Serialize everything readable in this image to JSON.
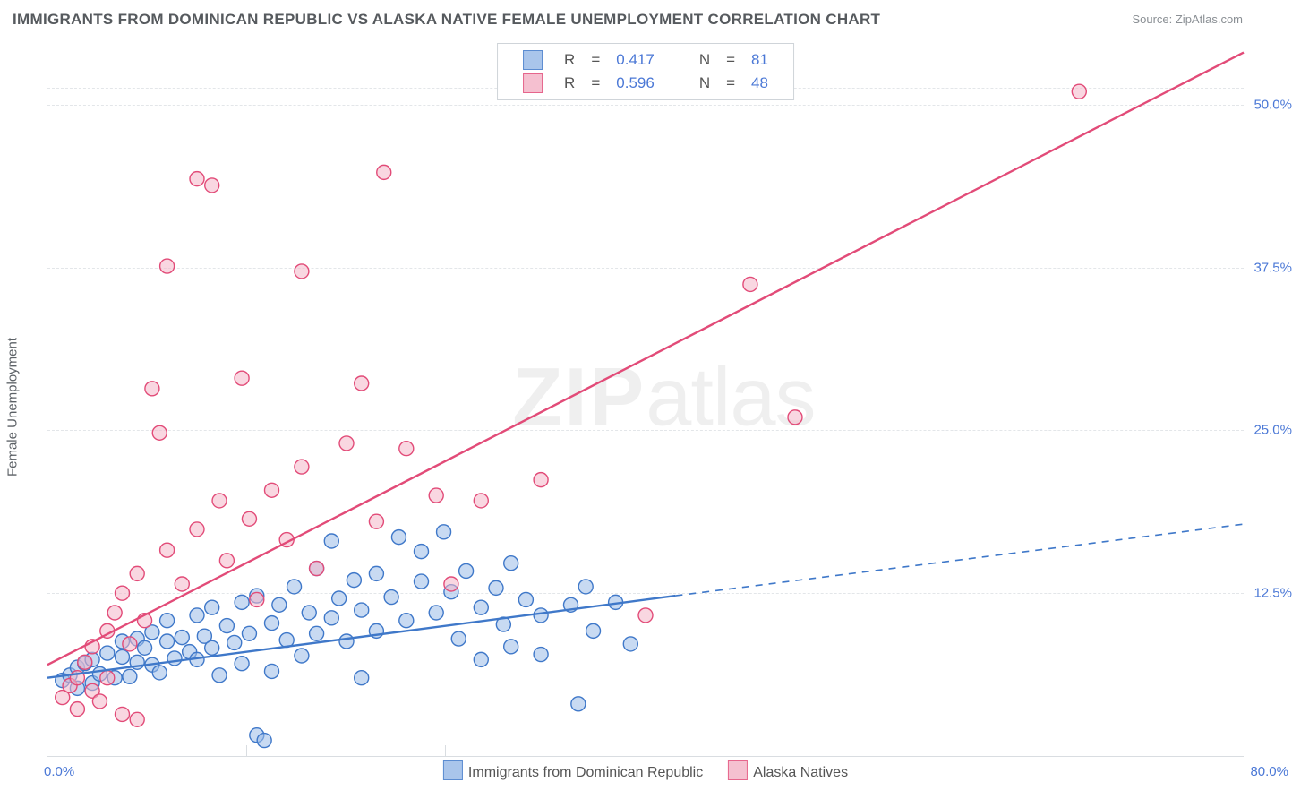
{
  "title": "IMMIGRANTS FROM DOMINICAN REPUBLIC VS ALASKA NATIVE FEMALE UNEMPLOYMENT CORRELATION CHART",
  "source_label": "Source: ZipAtlas.com",
  "watermark_zip": "ZIP",
  "watermark_atlas": "atlas",
  "y_axis_label": "Female Unemployment",
  "chart": {
    "type": "scatter+regression",
    "background_color": "#ffffff",
    "grid_color": "#e3e6e9",
    "axis_color": "#d9dde1",
    "tick_label_color": "#4b78d6",
    "tick_fontsize": 15,
    "xlim": [
      0,
      80
    ],
    "ylim": [
      0,
      55
    ],
    "y_ticks": [
      12.5,
      25.0,
      37.5,
      50.0
    ],
    "y_tick_labels": [
      "12.5%",
      "25.0%",
      "37.5%",
      "50.0%"
    ],
    "x_tick_low": "0.0%",
    "x_tick_high": "80.0%",
    "x_vticks_at": [
      13.3,
      26.6,
      40.0
    ],
    "marker_radius": 8,
    "marker_stroke_width": 1.4,
    "reg_line_width": 2.4,
    "series": [
      {
        "name": "Immigrants from Dominican Republic",
        "fill": "#9bbce8",
        "stroke": "#3f78c9",
        "fill_opacity": 0.55,
        "R": "0.417",
        "N": "81",
        "reg_start": [
          0,
          6.0
        ],
        "reg_solid_end": [
          42,
          12.3
        ],
        "reg_dash_end": [
          80,
          17.8
        ],
        "points": [
          [
            1,
            5.8
          ],
          [
            1.5,
            6.2
          ],
          [
            2,
            5.2
          ],
          [
            2,
            6.8
          ],
          [
            2.5,
            7.1
          ],
          [
            3,
            5.6
          ],
          [
            3,
            7.4
          ],
          [
            3.5,
            6.3
          ],
          [
            4,
            7.9
          ],
          [
            4.5,
            6.0
          ],
          [
            5,
            7.6
          ],
          [
            5,
            8.8
          ],
          [
            5.5,
            6.1
          ],
          [
            6,
            7.2
          ],
          [
            6,
            9.0
          ],
          [
            6.5,
            8.3
          ],
          [
            7,
            7.0
          ],
          [
            7,
            9.5
          ],
          [
            7.5,
            6.4
          ],
          [
            8,
            8.8
          ],
          [
            8,
            10.4
          ],
          [
            8.5,
            7.5
          ],
          [
            9,
            9.1
          ],
          [
            9.5,
            8.0
          ],
          [
            10,
            7.4
          ],
          [
            10,
            10.8
          ],
          [
            10.5,
            9.2
          ],
          [
            11,
            8.3
          ],
          [
            11,
            11.4
          ],
          [
            11.5,
            6.2
          ],
          [
            12,
            10.0
          ],
          [
            12.5,
            8.7
          ],
          [
            13,
            11.8
          ],
          [
            13,
            7.1
          ],
          [
            13.5,
            9.4
          ],
          [
            14,
            12.3
          ],
          [
            14,
            1.6
          ],
          [
            14.5,
            1.2
          ],
          [
            15,
            10.2
          ],
          [
            15,
            6.5
          ],
          [
            15.5,
            11.6
          ],
          [
            16,
            8.9
          ],
          [
            16.5,
            13.0
          ],
          [
            17,
            7.7
          ],
          [
            17.5,
            11.0
          ],
          [
            18,
            14.4
          ],
          [
            18,
            9.4
          ],
          [
            19,
            10.6
          ],
          [
            19,
            16.5
          ],
          [
            19.5,
            12.1
          ],
          [
            20,
            8.8
          ],
          [
            20.5,
            13.5
          ],
          [
            21,
            11.2
          ],
          [
            21,
            6.0
          ],
          [
            22,
            14.0
          ],
          [
            22,
            9.6
          ],
          [
            23,
            12.2
          ],
          [
            23.5,
            16.8
          ],
          [
            24,
            10.4
          ],
          [
            25,
            13.4
          ],
          [
            25,
            15.7
          ],
          [
            26,
            11.0
          ],
          [
            26.5,
            17.2
          ],
          [
            27,
            12.6
          ],
          [
            27.5,
            9.0
          ],
          [
            28,
            14.2
          ],
          [
            29,
            11.4
          ],
          [
            29,
            7.4
          ],
          [
            30,
            12.9
          ],
          [
            30.5,
            10.1
          ],
          [
            31,
            8.4
          ],
          [
            31,
            14.8
          ],
          [
            32,
            12.0
          ],
          [
            33,
            10.8
          ],
          [
            33,
            7.8
          ],
          [
            35,
            11.6
          ],
          [
            35.5,
            4.0
          ],
          [
            36,
            13.0
          ],
          [
            36.5,
            9.6
          ],
          [
            38,
            11.8
          ],
          [
            39,
            8.6
          ]
        ]
      },
      {
        "name": "Alaska Natives",
        "fill": "#f4b6c8",
        "stroke": "#e24b78",
        "fill_opacity": 0.55,
        "R": "0.596",
        "N": "48",
        "reg_start": [
          0,
          7.0
        ],
        "reg_solid_end": [
          80,
          54.0
        ],
        "reg_dash_end": null,
        "points": [
          [
            1,
            4.5
          ],
          [
            1.5,
            5.4
          ],
          [
            2,
            6.0
          ],
          [
            2,
            3.6
          ],
          [
            2.5,
            7.2
          ],
          [
            3,
            5.0
          ],
          [
            3,
            8.4
          ],
          [
            3.5,
            4.2
          ],
          [
            4,
            9.6
          ],
          [
            4,
            6.0
          ],
          [
            4.5,
            11.0
          ],
          [
            5,
            3.2
          ],
          [
            5,
            12.5
          ],
          [
            5.5,
            8.6
          ],
          [
            6,
            14.0
          ],
          [
            6,
            2.8
          ],
          [
            6.5,
            10.4
          ],
          [
            7,
            28.2
          ],
          [
            7.5,
            24.8
          ],
          [
            8,
            15.8
          ],
          [
            8,
            37.6
          ],
          [
            9,
            13.2
          ],
          [
            10,
            44.3
          ],
          [
            10,
            17.4
          ],
          [
            11,
            43.8
          ],
          [
            11.5,
            19.6
          ],
          [
            12,
            15.0
          ],
          [
            13,
            29.0
          ],
          [
            13.5,
            18.2
          ],
          [
            14,
            12.0
          ],
          [
            15,
            20.4
          ],
          [
            16,
            16.6
          ],
          [
            17,
            22.2
          ],
          [
            17,
            37.2
          ],
          [
            18,
            14.4
          ],
          [
            20,
            24.0
          ],
          [
            21,
            28.6
          ],
          [
            22,
            18.0
          ],
          [
            22.5,
            44.8
          ],
          [
            24,
            23.6
          ],
          [
            26,
            20.0
          ],
          [
            27,
            13.2
          ],
          [
            29,
            19.6
          ],
          [
            33,
            21.2
          ],
          [
            40,
            10.8
          ],
          [
            47,
            36.2
          ],
          [
            50,
            26.0
          ],
          [
            69,
            51.0
          ]
        ]
      }
    ],
    "legend_top": {
      "border_color": "#cfd4d9",
      "label_R": "R",
      "label_N": "N",
      "eq": "="
    },
    "legend_bottom": {
      "text_color": "#555555"
    }
  }
}
